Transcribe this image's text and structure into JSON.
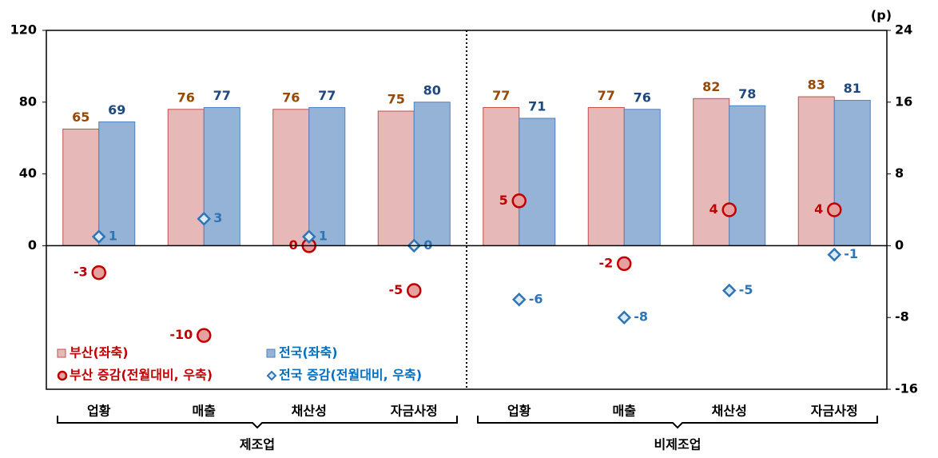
{
  "chart_data": {
    "type": "bar",
    "categories": [
      "업황",
      "매출",
      "채산성",
      "자금사정",
      "업황",
      "매출",
      "채산성",
      "자금사정"
    ],
    "group_categories": [
      "제조업",
      "비제조업"
    ],
    "y2label": "(p)",
    "ylim": [
      -80,
      120
    ],
    "yticks": [
      0,
      40,
      80,
      120
    ],
    "y2lim": [
      -16,
      24
    ],
    "y2ticks": [
      -16,
      -8,
      0,
      8,
      16,
      24
    ],
    "series": [
      {
        "name": "부산(좌축)",
        "type": "bar",
        "color": "#e6b9b8",
        "stroke": "#c0504d",
        "label_color": "#984807",
        "legend_color": "#c00000",
        "values": [
          65,
          76,
          76,
          75,
          77,
          77,
          82,
          83
        ]
      },
      {
        "name": "전국(좌축)",
        "type": "bar",
        "color": "#95b3d7",
        "stroke": "#4f81bd",
        "label_color": "#1f497d",
        "legend_color": "#0070c0",
        "values": [
          69,
          77,
          77,
          80,
          71,
          76,
          78,
          81
        ]
      },
      {
        "name": "부산 증감(전월대비, 우축)",
        "type": "scatter",
        "marker": "circle",
        "axis": "y2",
        "color": "#e6a0a0",
        "stroke": "#c00000",
        "label_color": "#c00000",
        "legend_color": "#c00000",
        "values": [
          -3,
          -10,
          0,
          -5,
          5,
          -2,
          4,
          4
        ]
      },
      {
        "name": "전국 증감(전월대비, 우축)",
        "type": "scatter",
        "marker": "diamond",
        "axis": "y2",
        "color": "#dbeaf7",
        "stroke": "#2e75b6",
        "label_color": "#2e75b6",
        "legend_color": "#0070c0",
        "values": [
          1,
          3,
          1,
          0,
          -6,
          -8,
          -5,
          -1
        ]
      }
    ]
  }
}
